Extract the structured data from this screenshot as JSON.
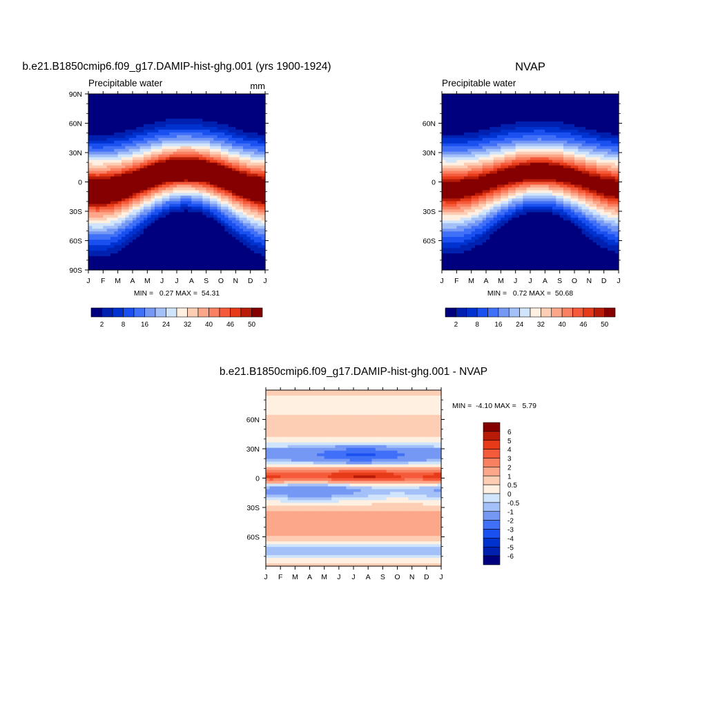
{
  "colors": {
    "absolute_palette": [
      "#00007f",
      "#0020b0",
      "#0032d0",
      "#1a50f0",
      "#4070f8",
      "#7698f5",
      "#a4c0f8",
      "#d0e4fb",
      "#fff0e2",
      "#fdcdb4",
      "#fca78a",
      "#f98060",
      "#f55a3a",
      "#e63a18",
      "#b81c08",
      "#850000"
    ],
    "diff_palette": [
      "#00007f",
      "#0020b0",
      "#0032d0",
      "#1a50f0",
      "#4070f8",
      "#7698f5",
      "#a4c0f8",
      "#d0e4fb",
      "#fff0e2",
      "#fdcdb4",
      "#fca78a",
      "#f98060",
      "#f55a3a",
      "#e63a18",
      "#b81c08",
      "#850000"
    ]
  },
  "chart_data": [
    {
      "type": "heatmap",
      "title": "b.e21.B1850cmip6.f09_g17.DAMIP-hist-ghg.001 (yrs 1900-1924)",
      "left_label": "Precipitable water",
      "units": "mm",
      "stats": "MIN =   0.27 MAX =  54.31",
      "min": 0.27,
      "max": 54.31,
      "x_ticks": [
        "J",
        "F",
        "M",
        "A",
        "M",
        "J",
        "J",
        "A",
        "S",
        "O",
        "N",
        "D",
        "J"
      ],
      "y_ticks": [
        "90N",
        "60N",
        "30N",
        "0",
        "30S",
        "60S",
        "90S"
      ],
      "y_range": [
        -90,
        90
      ],
      "colorbar_levels": [
        2,
        5,
        8,
        12,
        16,
        20,
        24,
        28,
        32,
        36,
        40,
        43,
        46,
        48,
        50
      ],
      "colorbar_labels": [
        "2",
        "8",
        "16",
        "24",
        "32",
        "40",
        "46",
        "50"
      ],
      "itcz_amplitude": 10,
      "peak": 55
    },
    {
      "type": "heatmap",
      "title": "NVAP",
      "left_label": "Precipitable water",
      "stats": "MIN =   0.72 MAX =  50.68",
      "min": 0.72,
      "max": 50.68,
      "x_ticks": [
        "J",
        "F",
        "M",
        "A",
        "M",
        "J",
        "J",
        "A",
        "S",
        "O",
        "N",
        "D",
        "J"
      ],
      "y_ticks": [
        "60N",
        "30N",
        "0",
        "30S",
        "60S"
      ],
      "y_range": [
        -90,
        90
      ],
      "colorbar_levels": [
        2,
        5,
        8,
        12,
        16,
        20,
        24,
        28,
        32,
        36,
        40,
        43,
        46,
        48,
        50
      ],
      "colorbar_labels": [
        "2",
        "8",
        "16",
        "24",
        "32",
        "40",
        "46",
        "50"
      ],
      "itcz_amplitude": 8,
      "peak": 51
    },
    {
      "type": "heatmap",
      "title": "b.e21.B1850cmip6.f09_g17.DAMIP-hist-ghg.001 - NVAP",
      "stats": "MIN =  -4.10 MAX =   5.79",
      "min": -4.1,
      "max": 5.79,
      "x_ticks": [
        "J",
        "F",
        "M",
        "A",
        "M",
        "J",
        "J",
        "A",
        "S",
        "O",
        "N",
        "D",
        "J"
      ],
      "y_ticks": [
        "60N",
        "30N",
        "0",
        "30S",
        "60S"
      ],
      "y_range": [
        -90,
        90
      ],
      "colorbar_levels": [
        -6,
        -5,
        -4,
        -3,
        -2,
        -1,
        -0.5,
        0,
        0.5,
        1,
        2,
        3,
        4,
        5,
        6
      ],
      "colorbar_labels": [
        "-6",
        "-5",
        "-4",
        "-3",
        "-2",
        "-1",
        "-0.5",
        "0",
        "0.5",
        "1",
        "2",
        "3",
        "4",
        "5",
        "6"
      ]
    }
  ]
}
